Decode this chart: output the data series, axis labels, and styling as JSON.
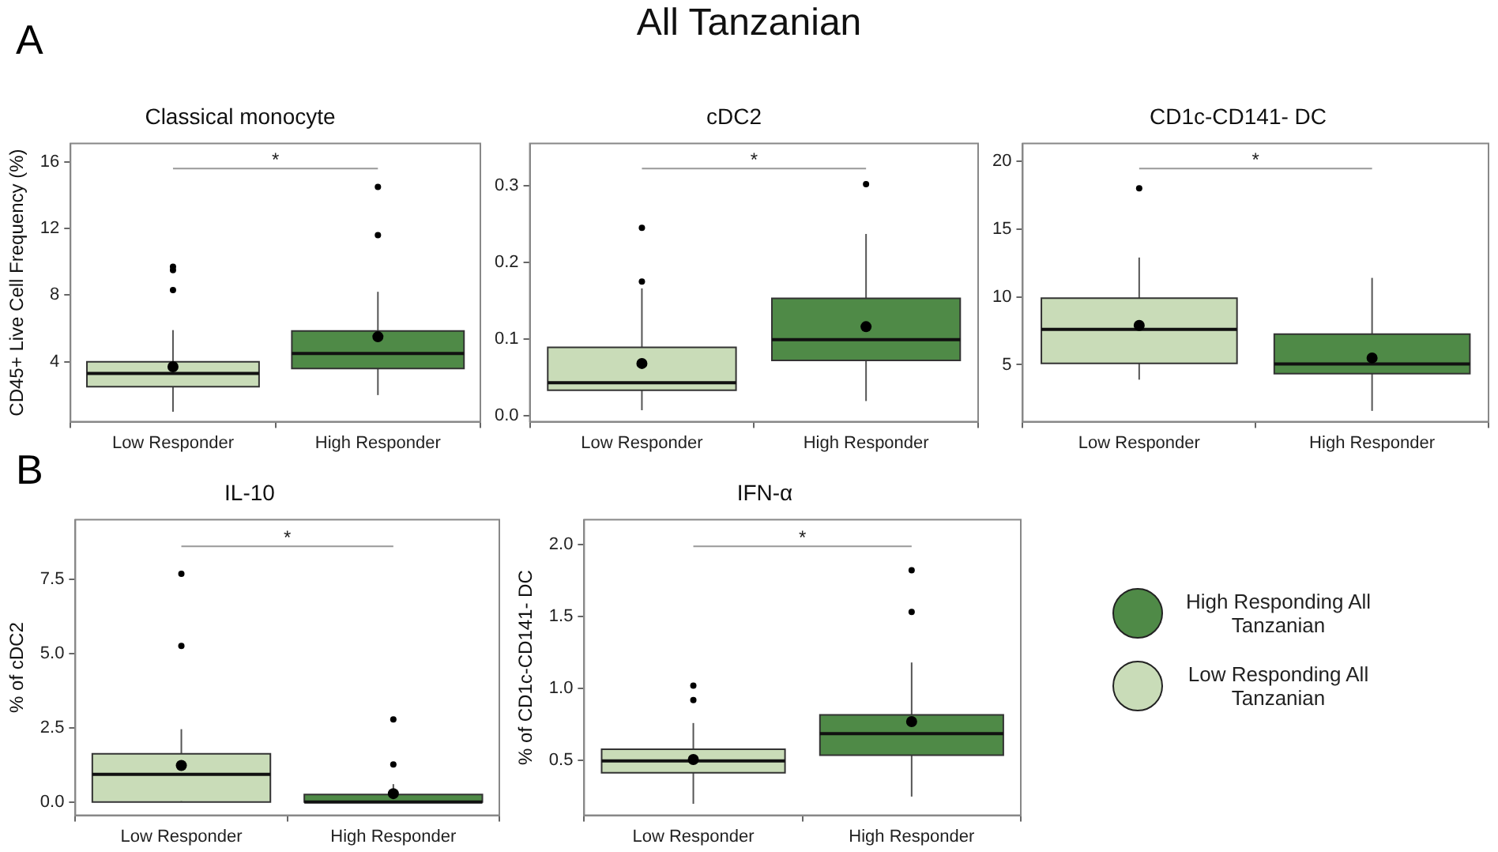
{
  "chart_data": [
    {
      "type": "box",
      "title": "Classical monocyte",
      "ylabel": "CD45+ Live Cell Frequency (%)",
      "categories": [
        "Low Responder",
        "High Responder"
      ],
      "ylim": [
        0.4,
        17.1
      ],
      "yticks": [
        4,
        8,
        12,
        16
      ],
      "annotations": [
        "*",
        "All Tanzanian",
        "A"
      ],
      "series": [
        {
          "color": "#4f8a47",
          "boxes": [
            null,
            {
              "low": 2.0,
              "q1": 3.6,
              "median": 4.5,
              "q3": 5.85,
              "high": 8.2,
              "mean": 5.5,
              "outliers": [
                14.5,
                11.6
              ]
            }
          ]
        },
        {
          "color": "#c9dcb8",
          "boxes": [
            {
              "low": 1.0,
              "q1": 2.5,
              "median": 3.3,
              "q3": 4.0,
              "high": 5.9,
              "mean": 3.7,
              "outliers": [
                9.7,
                9.5,
                8.3
              ]
            },
            null
          ]
        }
      ]
    },
    {
      "type": "box",
      "title": "cDC2",
      "categories": [
        "Low Responder",
        "High Responder"
      ],
      "ylim": [
        -0.008,
        0.355
      ],
      "yticks": [
        {
          "value": 0,
          "label": "0.0"
        },
        0.1,
        0.2,
        0.3
      ],
      "annotations": [
        "*"
      ],
      "series": [
        {
          "color": "#4f8a47",
          "boxes": [
            null,
            {
              "low": 0.019,
              "q1": 0.072,
              "median": 0.099,
              "q3": 0.153,
              "high": 0.237,
              "mean": 0.116,
              "outliers": [
                0.302
              ]
            }
          ]
        },
        {
          "color": "#c9dcb8",
          "boxes": [
            {
              "low": 0.007,
              "q1": 0.033,
              "median": 0.043,
              "q3": 0.089,
              "high": 0.166,
              "mean": 0.068,
              "outliers": [
                0.245,
                0.175
              ]
            },
            null
          ]
        }
      ]
    },
    {
      "type": "box",
      "title": "CD1c-CD141- DC",
      "categories": [
        "Low Responder",
        "High Responder"
      ],
      "ylim": [
        0.8,
        21.3
      ],
      "yticks": [
        5,
        10,
        15,
        20
      ],
      "annotations": [
        "*"
      ],
      "series": [
        {
          "color": "#4f8a47",
          "boxes": [
            null,
            {
              "low": 1.6,
              "q1": 4.35,
              "median": 5.05,
              "q3": 7.25,
              "high": 11.4,
              "mean": 5.5
            }
          ]
        },
        {
          "color": "#c9dcb8",
          "boxes": [
            {
              "low": 3.9,
              "q1": 5.1,
              "median": 7.6,
              "q3": 9.9,
              "high": 12.9,
              "mean": 7.9,
              "outliers": [
                18.0
              ]
            },
            null
          ]
        }
      ]
    },
    {
      "type": "box",
      "title": "IL-10",
      "ylabel": "% of cDC2",
      "categories": [
        "Low Responder",
        "High Responder"
      ],
      "ylim": [
        -0.45,
        9.5
      ],
      "yticks": [
        {
          "value": 0,
          "label": "0.0"
        },
        2.5,
        {
          "value": 5,
          "label": "5.0"
        },
        7.5
      ],
      "annotations": [
        "*",
        "B"
      ],
      "series": [
        {
          "color": "#4f8a47",
          "boxes": [
            null,
            {
              "low": 0.0,
              "q1": 0.0,
              "median": 0.0,
              "q3": 0.25,
              "high": 0.6,
              "mean": 0.28,
              "outliers": [
                2.78,
                1.26
              ]
            }
          ]
        },
        {
          "color": "#c9dcb8",
          "boxes": [
            {
              "low": 0.0,
              "q1": 0.0,
              "median": 0.93,
              "q3": 1.62,
              "high": 2.45,
              "mean": 1.23,
              "outliers": [
                7.68,
                5.25
              ]
            },
            null
          ]
        }
      ]
    },
    {
      "type": "box",
      "title": "IFN-α",
      "ylabel": "% of CD1c-CD141- DC",
      "categories": [
        "Low Responder",
        "High Responder"
      ],
      "ylim": [
        0.12,
        2.17
      ],
      "yticks": [
        0.5,
        {
          "value": 1,
          "label": "1.0"
        },
        1.5,
        {
          "value": 2,
          "label": "2.0"
        }
      ],
      "annotations": [
        "*"
      ],
      "legend": "right",
      "series": [
        {
          "name": "High Responding All Tanzanian",
          "color": "#4f8a47",
          "boxes": [
            null,
            {
              "low": 0.25,
              "q1": 0.537,
              "median": 0.687,
              "q3": 0.816,
              "high": 1.18,
              "mean": 0.77,
              "outliers": [
                1.82,
                1.53
              ]
            }
          ]
        },
        {
          "name": "Low Responding All Tanzanian",
          "color": "#c9dcb8",
          "boxes": [
            {
              "low": 0.2,
              "q1": 0.415,
              "median": 0.497,
              "q3": 0.578,
              "high": 0.76,
              "mean": 0.507,
              "outliers": [
                1.02,
                0.92
              ]
            },
            null
          ]
        }
      ]
    }
  ]
}
